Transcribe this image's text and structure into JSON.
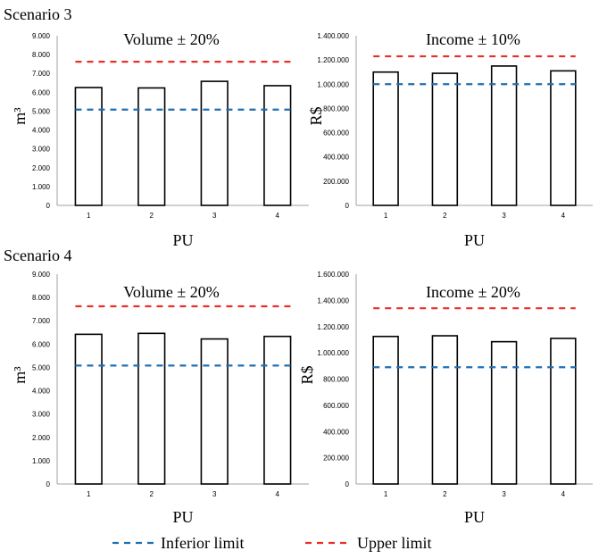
{
  "colors": {
    "inferior": "#1f6fb4",
    "upper": "#e8302a",
    "bar_fill": "#ffffff",
    "bar_stroke": "#000000",
    "axis": "#a0a0a0"
  },
  "legend": {
    "inferior_label": "Inferior limit",
    "upper_label": "Upper limit",
    "placement": "bottom-center"
  },
  "chart_data": [
    {
      "type": "bar",
      "scenario_label": "Scenario 3",
      "title": "Volume ± 20%",
      "xlabel": "PU",
      "ylabel": "m³",
      "categories": [
        "1",
        "2",
        "3",
        "4"
      ],
      "values": [
        6250,
        6230,
        6580,
        6350
      ],
      "ylim": [
        0,
        9000
      ],
      "yticks": [
        0,
        1000,
        2000,
        3000,
        4000,
        5000,
        6000,
        7000,
        8000,
        9000
      ],
      "ytick_labels": [
        "0",
        "1.000",
        "2.000",
        "3.000",
        "4.000",
        "5.000",
        "6.000",
        "7.000",
        "8.000",
        "9.000"
      ],
      "inferior_limit": 5080,
      "upper_limit": 7620
    },
    {
      "type": "bar",
      "scenario_label": "",
      "title": "Income ± 10%",
      "xlabel": "PU",
      "ylabel": "R$",
      "categories": [
        "1",
        "2",
        "3",
        "4"
      ],
      "values": [
        1100000,
        1090000,
        1150000,
        1110000
      ],
      "ylim": [
        0,
        1400000
      ],
      "yticks": [
        0,
        200000,
        400000,
        600000,
        800000,
        1000000,
        1200000,
        1400000
      ],
      "ytick_labels": [
        "0",
        "200.000",
        "400.000",
        "600.000",
        "800.000",
        "1.000.000",
        "1.200.000",
        "1.400.000"
      ],
      "inferior_limit": 1000000,
      "upper_limit": 1230000
    },
    {
      "type": "bar",
      "scenario_label": "Scenario 4",
      "title": "Volume ± 20%",
      "xlabel": "PU",
      "ylabel": "m³",
      "categories": [
        "1",
        "2",
        "3",
        "4"
      ],
      "values": [
        6420,
        6460,
        6220,
        6330
      ],
      "ylim": [
        0,
        9000
      ],
      "yticks": [
        0,
        1000,
        2000,
        3000,
        4000,
        5000,
        6000,
        7000,
        8000,
        9000
      ],
      "ytick_labels": [
        "0",
        "1.000",
        "2.000",
        "3.000",
        "4.000",
        "5.000",
        "6.000",
        "7.000",
        "8.000",
        "9.000"
      ],
      "inferior_limit": 5080,
      "upper_limit": 7620
    },
    {
      "type": "bar",
      "scenario_label": "",
      "title": "Income ± 20%",
      "xlabel": "PU",
      "ylabel": "R$",
      "categories": [
        "1",
        "2",
        "3",
        "4"
      ],
      "values": [
        1125000,
        1130000,
        1085000,
        1110000
      ],
      "ylim": [
        0,
        1600000
      ],
      "yticks": [
        0,
        200000,
        400000,
        600000,
        800000,
        1000000,
        1200000,
        1400000,
        1600000
      ],
      "ytick_labels": [
        "0",
        "200.000",
        "400.000",
        "600.000",
        "800.000",
        "1.000.000",
        "1.200.000",
        "1.400.000",
        "1.600.000"
      ],
      "inferior_limit": 890000,
      "upper_limit": 1340000
    }
  ]
}
